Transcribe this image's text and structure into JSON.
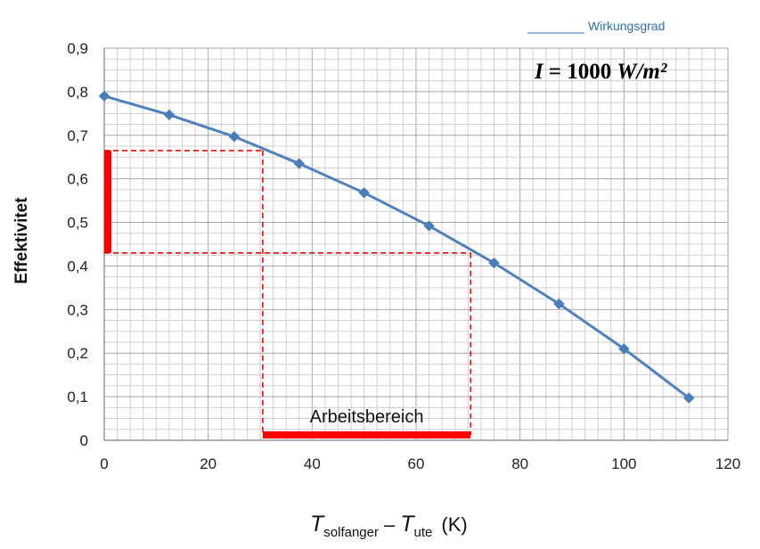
{
  "chart_data": {
    "type": "line",
    "legend": {
      "label": "Wirkungsgrad",
      "placement": "top-right"
    },
    "annotation": {
      "prefix": "I",
      "value": "= 1000",
      "unit": "W/m²"
    },
    "ylabel": "Effektivitet",
    "xlabel": {
      "t1": "T",
      "sub1": "solfanger",
      "dash": "–",
      "t2": "T",
      "sub2": "ute",
      "unit": "(K)"
    },
    "xlim": [
      0,
      120
    ],
    "ylim": [
      0,
      0.9
    ],
    "x_ticks": [
      "0",
      "20",
      "40",
      "60",
      "80",
      "100",
      "120"
    ],
    "y_ticks": [
      "0",
      "0,1",
      "0,2",
      "0,3",
      "0,4",
      "0,5",
      "0,6",
      "0,7",
      "0,8",
      "0,9"
    ],
    "grid": true,
    "series_color": "#4f81bd",
    "marker_color": "#4a7ebb",
    "series": [
      {
        "name": "Wirkungsgrad",
        "x": [
          0,
          12.5,
          25,
          37.5,
          50,
          62.5,
          75,
          87.5,
          100,
          112.5
        ],
        "y": [
          0.79,
          0.747,
          0.697,
          0.635,
          0.568,
          0.492,
          0.407,
          0.313,
          0.21,
          0.097
        ]
      }
    ],
    "working_range": {
      "label": "Arbeitsbereich",
      "x": [
        30.5,
        70.5
      ],
      "y": [
        0.43,
        0.665
      ],
      "color": "#ff0000"
    }
  }
}
